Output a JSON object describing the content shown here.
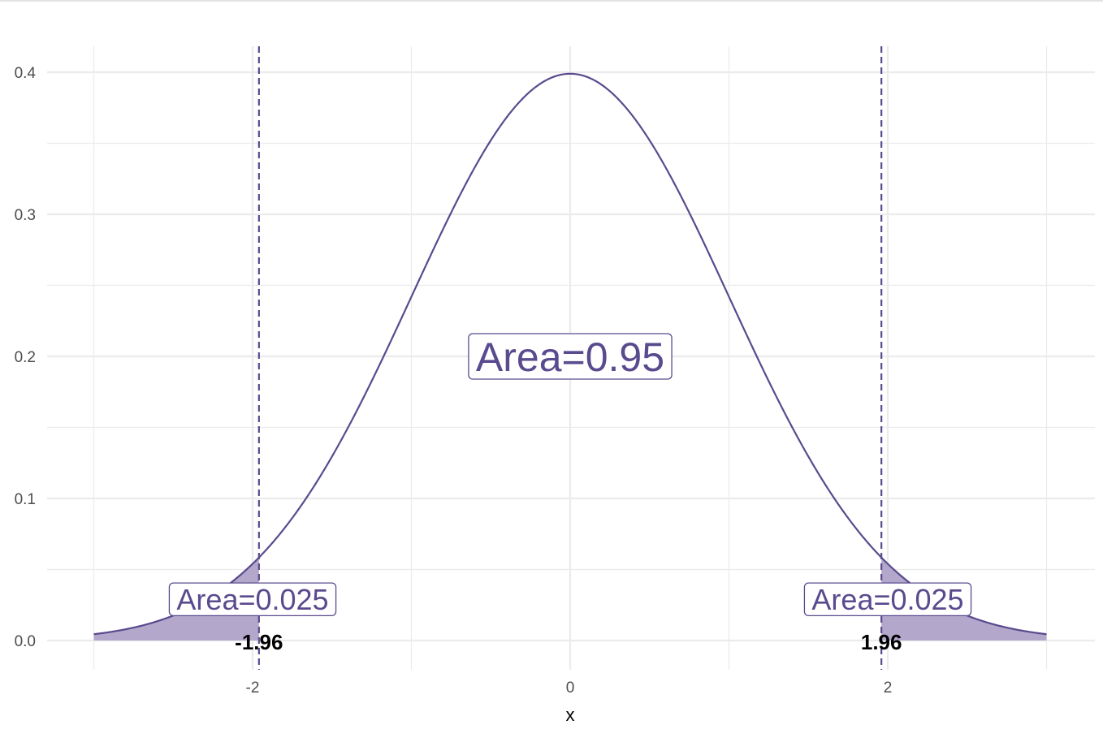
{
  "chart_data": {
    "type": "area",
    "title": "",
    "xlabel": "x",
    "ylabel": "",
    "xlim": [
      -3,
      3
    ],
    "ylim": [
      0,
      0.4
    ],
    "x_ticks": [
      -2,
      0,
      2
    ],
    "x_tick_labels": [
      "-2",
      "0",
      "2"
    ],
    "y_ticks": [
      0.0,
      0.1,
      0.2,
      0.3,
      0.4
    ],
    "y_tick_labels": [
      "0.0",
      "0.1",
      "0.2",
      "0.3",
      "0.4"
    ],
    "grid": true,
    "series": [
      {
        "kind": "line",
        "function": "standard normal density",
        "x_range": [
          -3,
          3
        ]
      },
      {
        "kind": "shaded",
        "x_range": [
          -3,
          -1.96
        ]
      },
      {
        "kind": "shaded",
        "x_range": [
          1.96,
          3
        ]
      }
    ],
    "vlines": [
      -1.96,
      1.96
    ],
    "annotations": [
      {
        "text": "Area=0.95",
        "x": 0,
        "y": 0.2,
        "boxed": true,
        "size": "large"
      },
      {
        "text": "Area=0.025",
        "x": -2,
        "y": 0.029,
        "boxed": true,
        "size": "medium"
      },
      {
        "text": "Area=0.025",
        "x": 2,
        "y": 0.029,
        "boxed": true,
        "size": "medium"
      },
      {
        "text": "-1.96",
        "x": -1.96,
        "y": 0,
        "bold": true
      },
      {
        "text": "1.96",
        "x": 1.96,
        "y": 0,
        "bold": true
      }
    ],
    "colors": {
      "line": "#5a4a8e",
      "fill": "#b3a8cb",
      "label_text": "#5a4a8e",
      "grid": "#ebebeb"
    }
  }
}
